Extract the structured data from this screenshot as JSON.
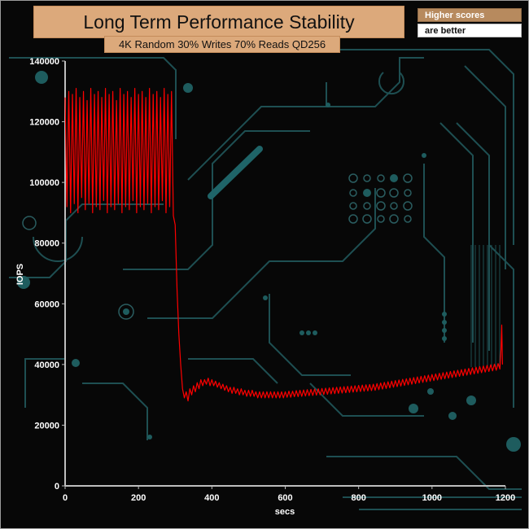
{
  "chart_data": {
    "type": "line",
    "title": "Long Term Performance Stability",
    "subtitle": "4K Random 30% Writes 70% Reads QD256",
    "xlabel": "secs",
    "ylabel": "IOPS",
    "xlim": [
      0,
      1200
    ],
    "ylim": [
      0,
      140000
    ],
    "xticks": [
      0,
      200,
      400,
      600,
      800,
      1000,
      1200
    ],
    "yticks": [
      0,
      20000,
      40000,
      60000,
      80000,
      100000,
      120000,
      140000
    ],
    "grid": false,
    "legend": "none",
    "series_color": "#ff0000",
    "series": [
      {
        "points": [
          [
            0,
            128000
          ],
          [
            5,
            92000
          ],
          [
            10,
            130000
          ],
          [
            15,
            90000
          ],
          [
            20,
            129000
          ],
          [
            25,
            93000
          ],
          [
            30,
            131000
          ],
          [
            35,
            90000
          ],
          [
            40,
            128000
          ],
          [
            45,
            95000
          ],
          [
            50,
            130000
          ],
          [
            55,
            91000
          ],
          [
            60,
            127000
          ],
          [
            65,
            93000
          ],
          [
            70,
            131000
          ],
          [
            75,
            90000
          ],
          [
            80,
            129000
          ],
          [
            85,
            92000
          ],
          [
            90,
            130000
          ],
          [
            95,
            91000
          ],
          [
            100,
            128000
          ],
          [
            105,
            94000
          ],
          [
            110,
            131000
          ],
          [
            115,
            90000
          ],
          [
            120,
            129000
          ],
          [
            125,
            92000
          ],
          [
            130,
            130000
          ],
          [
            135,
            91000
          ],
          [
            140,
            127000
          ],
          [
            145,
            93000
          ],
          [
            150,
            131000
          ],
          [
            155,
            90000
          ],
          [
            160,
            129000
          ],
          [
            165,
            92000
          ],
          [
            170,
            130000
          ],
          [
            175,
            91000
          ],
          [
            180,
            128000
          ],
          [
            185,
            94000
          ],
          [
            190,
            131000
          ],
          [
            195,
            90000
          ],
          [
            200,
            129000
          ],
          [
            205,
            92000
          ],
          [
            210,
            130000
          ],
          [
            215,
            91000
          ],
          [
            220,
            128000
          ],
          [
            225,
            93000
          ],
          [
            230,
            131000
          ],
          [
            235,
            90000
          ],
          [
            240,
            129000
          ],
          [
            245,
            92000
          ],
          [
            250,
            130000
          ],
          [
            255,
            91000
          ],
          [
            260,
            128000
          ],
          [
            265,
            94000
          ],
          [
            270,
            131000
          ],
          [
            275,
            90000
          ],
          [
            280,
            129000
          ],
          [
            285,
            92000
          ],
          [
            290,
            130000
          ],
          [
            295,
            89000
          ],
          [
            300,
            86000
          ],
          [
            305,
            65000
          ],
          [
            310,
            50000
          ],
          [
            315,
            40000
          ],
          [
            320,
            32000
          ],
          [
            325,
            29000
          ],
          [
            330,
            31000
          ],
          [
            335,
            28000
          ],
          [
            340,
            32000
          ],
          [
            345,
            30000
          ],
          [
            350,
            33000
          ],
          [
            355,
            31000
          ],
          [
            360,
            34000
          ],
          [
            365,
            32000
          ],
          [
            370,
            35000
          ],
          [
            375,
            33000
          ],
          [
            380,
            35000
          ],
          [
            385,
            33500
          ],
          [
            390,
            35500
          ],
          [
            395,
            33000
          ],
          [
            400,
            35000
          ],
          [
            405,
            33000
          ],
          [
            410,
            34500
          ],
          [
            415,
            32500
          ],
          [
            420,
            34000
          ],
          [
            425,
            32000
          ],
          [
            430,
            33500
          ],
          [
            435,
            31500
          ],
          [
            440,
            33000
          ],
          [
            445,
            31000
          ],
          [
            450,
            32500
          ],
          [
            455,
            30500
          ],
          [
            460,
            32500
          ],
          [
            465,
            30500
          ],
          [
            470,
            32000
          ],
          [
            475,
            30000
          ],
          [
            480,
            32000
          ],
          [
            485,
            30000
          ],
          [
            490,
            31500
          ],
          [
            495,
            29500
          ],
          [
            500,
            31500
          ],
          [
            505,
            29500
          ],
          [
            510,
            31500
          ],
          [
            515,
            29500
          ],
          [
            520,
            31000
          ],
          [
            525,
            29000
          ],
          [
            530,
            31000
          ],
          [
            535,
            29000
          ],
          [
            540,
            31000
          ],
          [
            545,
            29000
          ],
          [
            550,
            31000
          ],
          [
            555,
            29000
          ],
          [
            560,
            31000
          ],
          [
            565,
            29000
          ],
          [
            570,
            31000
          ],
          [
            575,
            29000
          ],
          [
            580,
            31000
          ],
          [
            585,
            29000
          ],
          [
            590,
            31000
          ],
          [
            595,
            29000
          ],
          [
            600,
            31000
          ],
          [
            605,
            29200
          ],
          [
            610,
            31200
          ],
          [
            615,
            29200
          ],
          [
            620,
            31200
          ],
          [
            625,
            29400
          ],
          [
            630,
            31400
          ],
          [
            635,
            29400
          ],
          [
            640,
            31500
          ],
          [
            645,
            29500
          ],
          [
            650,
            31600
          ],
          [
            655,
            29600
          ],
          [
            660,
            31700
          ],
          [
            665,
            29700
          ],
          [
            670,
            31800
          ],
          [
            675,
            29800
          ],
          [
            680,
            31900
          ],
          [
            685,
            29900
          ],
          [
            690,
            32000
          ],
          [
            695,
            30000
          ],
          [
            700,
            32100
          ],
          [
            705,
            30100
          ],
          [
            710,
            32200
          ],
          [
            715,
            30200
          ],
          [
            720,
            32300
          ],
          [
            725,
            30300
          ],
          [
            730,
            32400
          ],
          [
            735,
            30400
          ],
          [
            740,
            32500
          ],
          [
            745,
            30500
          ],
          [
            750,
            32600
          ],
          [
            755,
            30600
          ],
          [
            760,
            32700
          ],
          [
            765,
            30700
          ],
          [
            770,
            32800
          ],
          [
            775,
            30800
          ],
          [
            780,
            32900
          ],
          [
            785,
            30900
          ],
          [
            790,
            33000
          ],
          [
            795,
            31000
          ],
          [
            800,
            33100
          ],
          [
            805,
            31100
          ],
          [
            810,
            33200
          ],
          [
            815,
            31200
          ],
          [
            820,
            33300
          ],
          [
            825,
            31300
          ],
          [
            830,
            33400
          ],
          [
            835,
            31400
          ],
          [
            840,
            33500
          ],
          [
            845,
            31500
          ],
          [
            850,
            33700
          ],
          [
            855,
            31700
          ],
          [
            860,
            33900
          ],
          [
            865,
            31900
          ],
          [
            870,
            34100
          ],
          [
            875,
            32100
          ],
          [
            880,
            34300
          ],
          [
            885,
            32300
          ],
          [
            890,
            34500
          ],
          [
            895,
            32500
          ],
          [
            900,
            34700
          ],
          [
            905,
            32700
          ],
          [
            910,
            34900
          ],
          [
            915,
            32900
          ],
          [
            920,
            35100
          ],
          [
            925,
            33100
          ],
          [
            930,
            35300
          ],
          [
            935,
            33300
          ],
          [
            940,
            35500
          ],
          [
            945,
            33500
          ],
          [
            950,
            35700
          ],
          [
            955,
            33700
          ],
          [
            960,
            35900
          ],
          [
            965,
            33900
          ],
          [
            970,
            36100
          ],
          [
            975,
            34100
          ],
          [
            980,
            36300
          ],
          [
            985,
            34300
          ],
          [
            990,
            36500
          ],
          [
            995,
            34500
          ],
          [
            1000,
            36700
          ],
          [
            1005,
            34700
          ],
          [
            1010,
            36900
          ],
          [
            1015,
            34900
          ],
          [
            1020,
            37100
          ],
          [
            1025,
            35100
          ],
          [
            1030,
            37300
          ],
          [
            1035,
            35300
          ],
          [
            1040,
            37500
          ],
          [
            1045,
            35500
          ],
          [
            1050,
            37700
          ],
          [
            1055,
            35700
          ],
          [
            1060,
            37900
          ],
          [
            1065,
            35900
          ],
          [
            1070,
            38100
          ],
          [
            1075,
            36100
          ],
          [
            1080,
            38300
          ],
          [
            1085,
            36300
          ],
          [
            1090,
            38500
          ],
          [
            1095,
            36500
          ],
          [
            1100,
            38700
          ],
          [
            1105,
            36700
          ],
          [
            1110,
            38900
          ],
          [
            1115,
            36900
          ],
          [
            1120,
            39100
          ],
          [
            1125,
            37100
          ],
          [
            1130,
            39300
          ],
          [
            1135,
            37300
          ],
          [
            1140,
            39500
          ],
          [
            1145,
            37500
          ],
          [
            1150,
            39700
          ],
          [
            1155,
            37700
          ],
          [
            1160,
            39900
          ],
          [
            1165,
            37900
          ],
          [
            1170,
            40100
          ],
          [
            1175,
            38100
          ],
          [
            1180,
            40300
          ],
          [
            1185,
            38500
          ],
          [
            1188,
            45000
          ],
          [
            1190,
            53000
          ],
          [
            1192,
            40000
          ]
        ]
      }
    ]
  },
  "notes": {
    "line1": "Higher scores",
    "line2": "are better"
  }
}
